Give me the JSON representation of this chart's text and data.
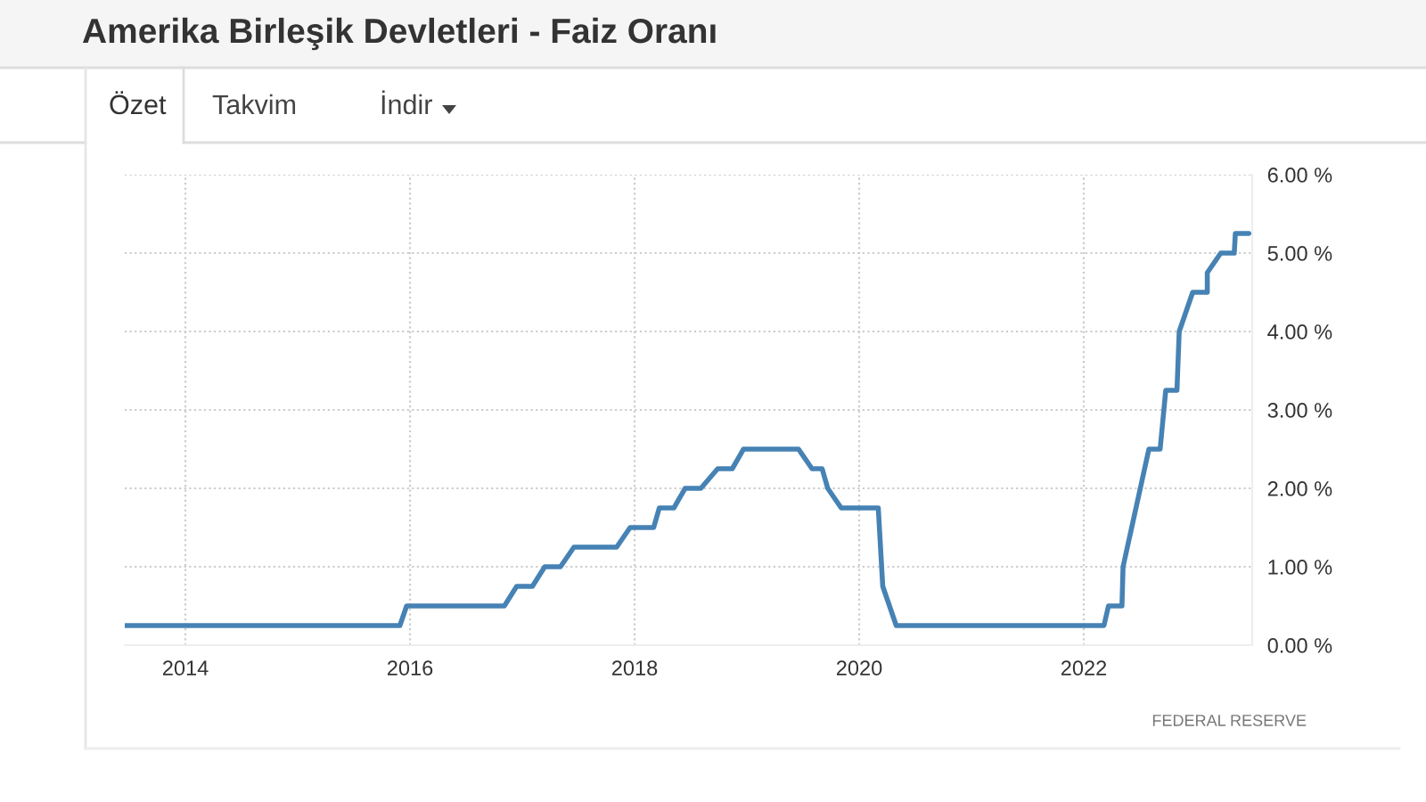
{
  "chart_data": {
    "type": "line",
    "title": "Amerika Birleşik Devletleri - Faiz Oranı",
    "annotations": [
      "Özet",
      "Takvim",
      "İndir",
      "FEDERAL RESERVE"
    ],
    "x": [
      2013.46,
      2015.91,
      2015.97,
      2016.84,
      2016.95,
      2017.09,
      2017.2,
      2017.34,
      2017.46,
      2017.84,
      2017.96,
      2018.17,
      2018.22,
      2018.35,
      2018.45,
      2018.59,
      2018.74,
      2018.87,
      2018.97,
      2019.46,
      2019.58,
      2019.67,
      2019.72,
      2019.84,
      2020.17,
      2020.21,
      2020.33,
      2022.18,
      2022.22,
      2022.34,
      2022.35,
      2022.58,
      2022.68,
      2022.73,
      2022.83,
      2022.85,
      2022.97,
      2023.1,
      2023.1,
      2023.22,
      2023.34,
      2023.35,
      2023.47
    ],
    "series": [
      {
        "color": "#4682b4",
        "values": [
          0.25,
          0.25,
          0.5,
          0.5,
          0.75,
          0.75,
          1.0,
          1.0,
          1.25,
          1.25,
          1.5,
          1.5,
          1.75,
          1.75,
          2.0,
          2.0,
          2.25,
          2.25,
          2.5,
          2.5,
          2.25,
          2.25,
          2.0,
          1.75,
          1.75,
          0.75,
          0.25,
          0.25,
          0.5,
          0.5,
          1.0,
          2.5,
          2.5,
          3.25,
          3.25,
          4.0,
          4.5,
          4.5,
          4.75,
          5.0,
          5.0,
          5.25,
          5.25
        ]
      }
    ],
    "xlim": [
      2013.46,
      2023.5
    ],
    "xticks": [
      2014,
      2016,
      2018,
      2020,
      2022
    ],
    "ylim": [
      0,
      6
    ],
    "yticks": [
      {
        "value": 0,
        "label": "0.00 %"
      },
      {
        "value": 1,
        "label": "1.00 %"
      },
      {
        "value": 2,
        "label": "2.00 %"
      },
      {
        "value": 3,
        "label": "3.00 %"
      },
      {
        "value": 4,
        "label": "4.00 %"
      },
      {
        "value": 5,
        "label": "5.00 %"
      },
      {
        "value": 6,
        "label": "6.00 %"
      }
    ],
    "grid": true
  }
}
